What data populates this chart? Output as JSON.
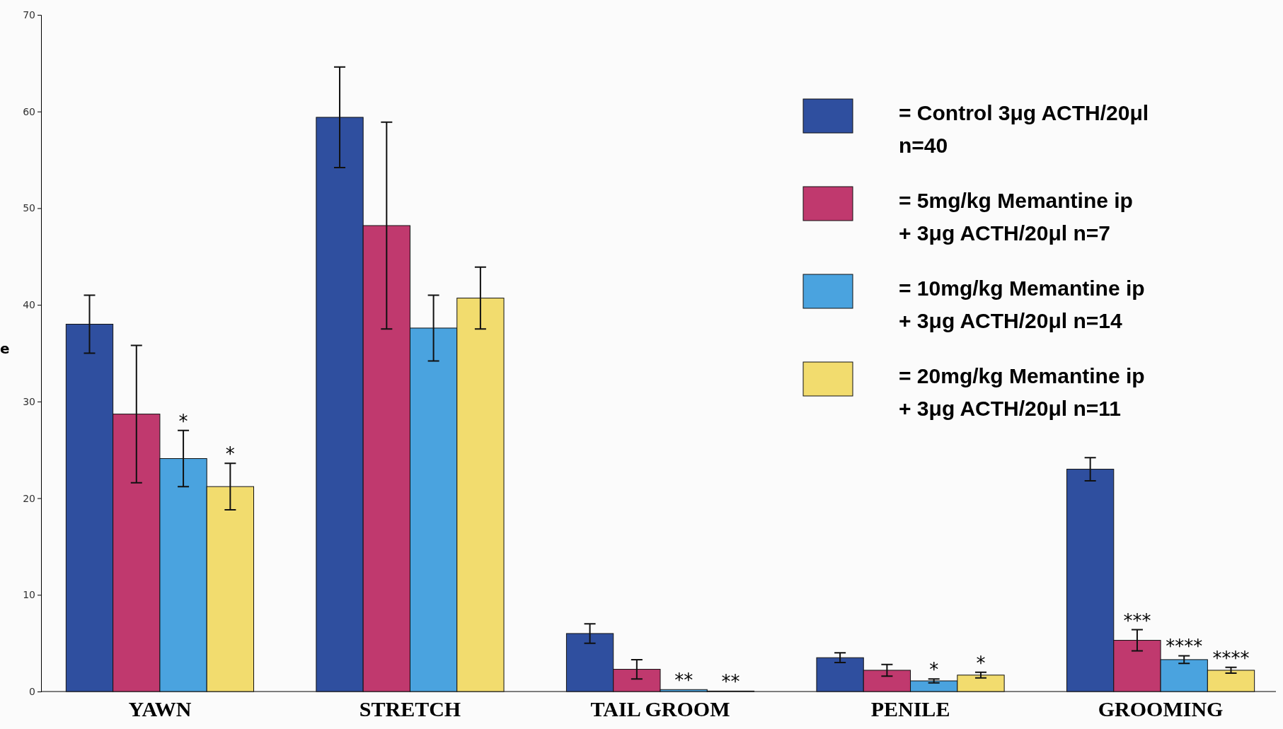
{
  "chart_data": {
    "type": "bar",
    "ylabel": "e",
    "categories": [
      "YAWN",
      "STRETCH",
      "TAIL GROOM",
      "PENILE",
      "GROOMING"
    ],
    "series": [
      {
        "name": "= Control 3μg ACTH/20μl n=40",
        "color": "#2f4f9f",
        "values": [
          38,
          59.4,
          6,
          3.5,
          23
        ],
        "errors": [
          3,
          5.2,
          1,
          0.5,
          1.2
        ],
        "value_labels": [
          null,
          null,
          null,
          null,
          null
        ]
      },
      {
        "name": "= 5mg/kg Memantine ip + 3μg ACTH/20μl n=7",
        "color": "#c0396e",
        "values": [
          28.7,
          48.2,
          2.3,
          2.2,
          5.3
        ],
        "errors": [
          7.1,
          10.7,
          1,
          0.6,
          1.1
        ],
        "value_labels": [
          null,
          null,
          null,
          null,
          "***"
        ]
      },
      {
        "name": "= 10mg/kg Memantine ip + 3μg ACTH/20μl n=14",
        "color": "#4aa3df",
        "values": [
          24.1,
          37.6,
          0.2,
          1.1,
          3.3
        ],
        "errors": [
          2.9,
          3.4,
          null,
          0.2,
          0.4
        ],
        "value_labels": [
          "*",
          null,
          "**",
          "*",
          "****"
        ]
      },
      {
        "name": "= 20mg/kg Memantine ip + 3μg ACTH/20μl n=11",
        "color": "#f2dc6e",
        "values": [
          21.2,
          40.7,
          0.05,
          1.7,
          2.2
        ],
        "errors": [
          2.4,
          3.2,
          null,
          0.3,
          0.3
        ],
        "value_labels": [
          "*",
          null,
          "**",
          "*",
          "****"
        ]
      }
    ],
    "ylim": [
      0,
      70
    ],
    "yticks": [
      0,
      10,
      20,
      30,
      40,
      50,
      60,
      70
    ],
    "grid": false,
    "legend": "top right"
  }
}
